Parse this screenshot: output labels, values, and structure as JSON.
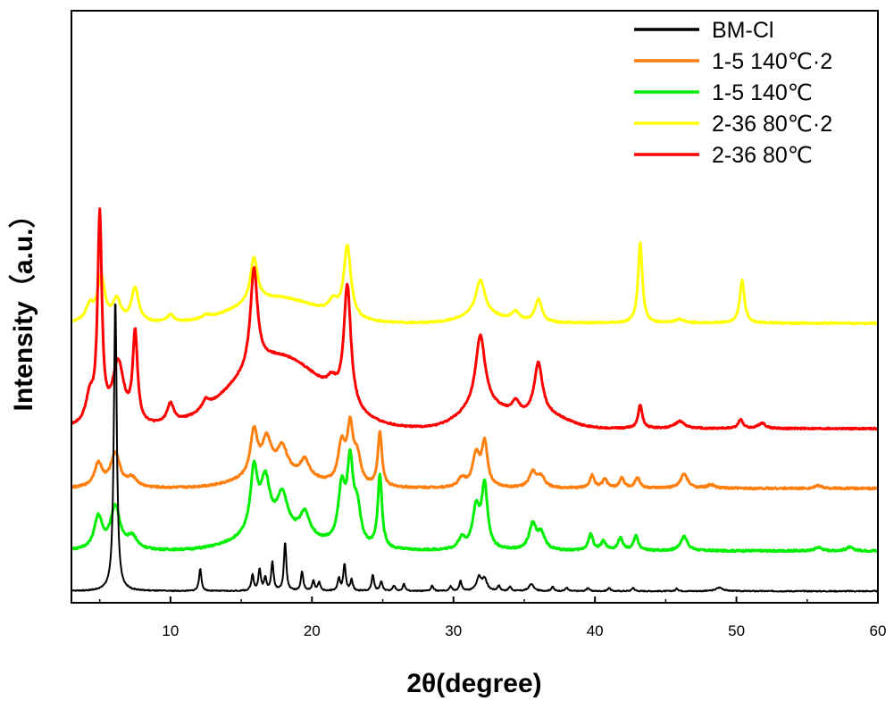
{
  "chart_data": {
    "type": "line",
    "xlabel": "2θ(degree)",
    "ylabel": "Intensity（a.u.）",
    "xlim": [
      3,
      60
    ],
    "x_ticks": [
      10,
      20,
      30,
      40,
      50,
      60
    ],
    "grid": false,
    "legend_position": "top-right",
    "series": [
      {
        "name": "BM-Cl",
        "color": "#000000",
        "baseline": 0,
        "noise": 0.6,
        "peaks": [
          [
            6.1,
            330,
            0.12
          ],
          [
            12.1,
            25,
            0.1
          ],
          [
            15.8,
            18,
            0.1
          ],
          [
            16.3,
            24,
            0.1
          ],
          [
            16.7,
            14,
            0.1
          ],
          [
            17.2,
            32,
            0.1
          ],
          [
            18.1,
            55,
            0.1
          ],
          [
            19.3,
            22,
            0.1
          ],
          [
            20.1,
            11,
            0.1
          ],
          [
            20.5,
            10,
            0.1
          ],
          [
            21.9,
            14,
            0.1
          ],
          [
            22.3,
            30,
            0.1
          ],
          [
            22.8,
            12,
            0.1
          ],
          [
            24.3,
            18,
            0.1
          ],
          [
            24.9,
            11,
            0.1
          ],
          [
            25.8,
            6,
            0.1
          ],
          [
            26.5,
            8,
            0.1
          ],
          [
            28.5,
            6,
            0.1
          ],
          [
            29.8,
            5,
            0.1
          ],
          [
            30.5,
            11,
            0.1
          ],
          [
            31.8,
            15,
            0.2
          ],
          [
            32.2,
            13,
            0.2
          ],
          [
            33.2,
            6,
            0.1
          ],
          [
            34.0,
            5,
            0.1
          ],
          [
            35.5,
            8,
            0.2
          ],
          [
            37.0,
            5,
            0.1
          ],
          [
            38.0,
            4,
            0.1
          ],
          [
            39.5,
            4,
            0.1
          ],
          [
            41.0,
            4,
            0.1
          ],
          [
            42.7,
            4,
            0.1
          ],
          [
            45.8,
            3,
            0.1
          ],
          [
            48.8,
            4,
            0.3
          ]
        ]
      },
      {
        "name": "1-5 140℃·2",
        "color": "#ff7f0e",
        "baseline": 115,
        "noise": 1.0,
        "peaks": [
          [
            4.9,
            26,
            0.35
          ],
          [
            6.1,
            38,
            0.4
          ],
          [
            7.3,
            10,
            0.4
          ],
          [
            15.9,
            50,
            0.3
          ],
          [
            16.8,
            38,
            0.4
          ],
          [
            17.9,
            30,
            0.45
          ],
          [
            19.5,
            20,
            0.4
          ],
          [
            22.1,
            44,
            0.3
          ],
          [
            22.7,
            60,
            0.25
          ],
          [
            23.2,
            30,
            0.3
          ],
          [
            24.8,
            60,
            0.18
          ],
          [
            30.6,
            10,
            0.3
          ],
          [
            31.6,
            36,
            0.3
          ],
          [
            32.2,
            48,
            0.25
          ],
          [
            35.6,
            18,
            0.3
          ],
          [
            36.2,
            12,
            0.3
          ],
          [
            39.8,
            14,
            0.2
          ],
          [
            40.7,
            10,
            0.2
          ],
          [
            41.9,
            11,
            0.2
          ],
          [
            43.0,
            12,
            0.2
          ],
          [
            46.3,
            16,
            0.3
          ],
          [
            48.2,
            4,
            0.3
          ],
          [
            55.8,
            3,
            0.3
          ]
        ],
        "broad": [
          [
            17.5,
            14,
            2.5
          ]
        ]
      },
      {
        "name": "1-5 140℃",
        "color": "#00ee00",
        "baseline": 45,
        "noise": 1.0,
        "peaks": [
          [
            4.9,
            36,
            0.35
          ],
          [
            6.1,
            48,
            0.4
          ],
          [
            7.3,
            14,
            0.4
          ],
          [
            15.9,
            70,
            0.3
          ],
          [
            16.7,
            56,
            0.4
          ],
          [
            17.9,
            40,
            0.45
          ],
          [
            19.5,
            26,
            0.4
          ],
          [
            22.1,
            62,
            0.3
          ],
          [
            22.7,
            86,
            0.25
          ],
          [
            23.2,
            40,
            0.3
          ],
          [
            24.8,
            82,
            0.18
          ],
          [
            30.6,
            12,
            0.3
          ],
          [
            31.6,
            44,
            0.3
          ],
          [
            32.2,
            70,
            0.25
          ],
          [
            35.6,
            28,
            0.3
          ],
          [
            36.2,
            18,
            0.3
          ],
          [
            39.7,
            18,
            0.2
          ],
          [
            40.6,
            10,
            0.2
          ],
          [
            41.8,
            14,
            0.2
          ],
          [
            42.9,
            16,
            0.2
          ],
          [
            46.3,
            16,
            0.3
          ],
          [
            55.8,
            4,
            0.3
          ],
          [
            58.0,
            4,
            0.3
          ]
        ],
        "broad": [
          [
            17.5,
            20,
            2.5
          ]
        ]
      },
      {
        "name": "2-36 80℃·2",
        "color": "#ffff00",
        "baseline": 300,
        "noise": 0.8,
        "peaks": [
          [
            4.3,
            18,
            0.35
          ],
          [
            5.1,
            50,
            0.3
          ],
          [
            6.2,
            24,
            0.35
          ],
          [
            7.5,
            38,
            0.3
          ],
          [
            10.0,
            8,
            0.3
          ],
          [
            12.5,
            4,
            0.3
          ],
          [
            15.9,
            50,
            0.3
          ],
          [
            21.5,
            14,
            0.4
          ],
          [
            22.5,
            80,
            0.3
          ],
          [
            31.9,
            40,
            0.4
          ],
          [
            34.4,
            10,
            0.35
          ],
          [
            36.0,
            26,
            0.3
          ],
          [
            43.2,
            90,
            0.18
          ],
          [
            46.0,
            4,
            0.4
          ],
          [
            50.4,
            48,
            0.2
          ]
        ],
        "broad": [
          [
            17.5,
            28,
            2.8
          ],
          [
            32.0,
            8,
            1.5
          ]
        ]
      },
      {
        "name": "2-36 80℃",
        "color": "#ff0000",
        "baseline": 182,
        "noise": 0.8,
        "peaks": [
          [
            4.3,
            30,
            0.35
          ],
          [
            5.0,
            230,
            0.18
          ],
          [
            6.3,
            70,
            0.5
          ],
          [
            7.5,
            100,
            0.2
          ],
          [
            10.0,
            22,
            0.3
          ],
          [
            12.5,
            10,
            0.3
          ],
          [
            15.9,
            110,
            0.3
          ],
          [
            21.4,
            14,
            0.4
          ],
          [
            22.5,
            135,
            0.3
          ],
          [
            31.9,
            80,
            0.4
          ],
          [
            34.4,
            14,
            0.35
          ],
          [
            36.0,
            58,
            0.35
          ],
          [
            43.2,
            26,
            0.18
          ],
          [
            46.0,
            8,
            0.4
          ],
          [
            50.3,
            10,
            0.2
          ],
          [
            51.8,
            6,
            0.3
          ]
        ],
        "broad": [
          [
            17.6,
            80,
            3.2
          ],
          [
            32.2,
            24,
            1.6
          ],
          [
            36.5,
            14,
            1.5
          ]
        ]
      }
    ]
  }
}
